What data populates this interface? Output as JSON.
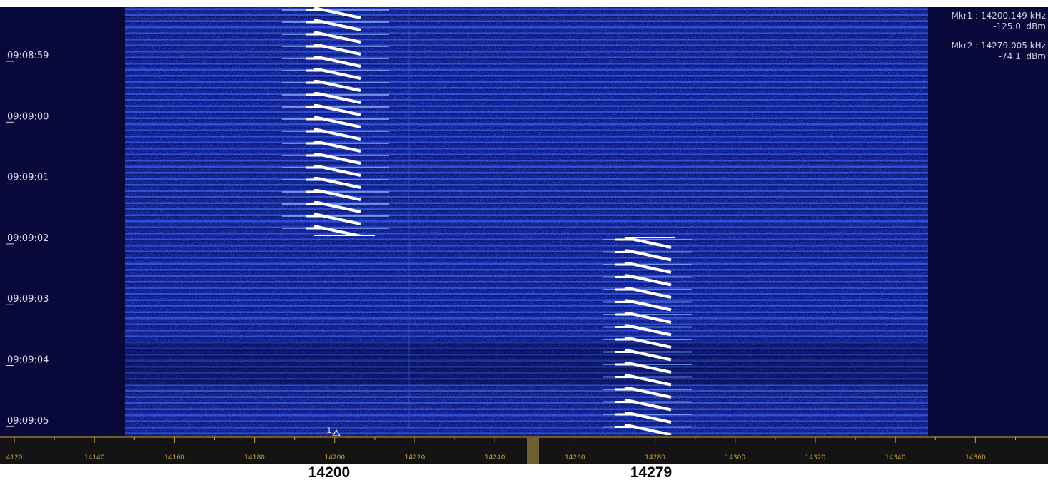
{
  "time_labels": [
    "09:08:59",
    "09:09:00",
    "09:09:01",
    "09:09:02",
    "09:09:03",
    "09:09:04",
    "09:09:05"
  ],
  "markers": [
    {
      "frequency": "Mkr1 : 14200.149 kHz",
      "level": "-125.0  dBm"
    },
    {
      "frequency": "Mkr2 : 14279.005 kHz",
      "level": "-74.1  dBm"
    }
  ],
  "marker_flag": "1",
  "frequency_axis": {
    "ticks": [
      "4120",
      "14140",
      "14160",
      "14180",
      "14200",
      "14220",
      "14240",
      "14260",
      "14280",
      "14300",
      "14320",
      "14340",
      "14360"
    ]
  },
  "annotations": [
    "14200",
    "14279"
  ]
}
